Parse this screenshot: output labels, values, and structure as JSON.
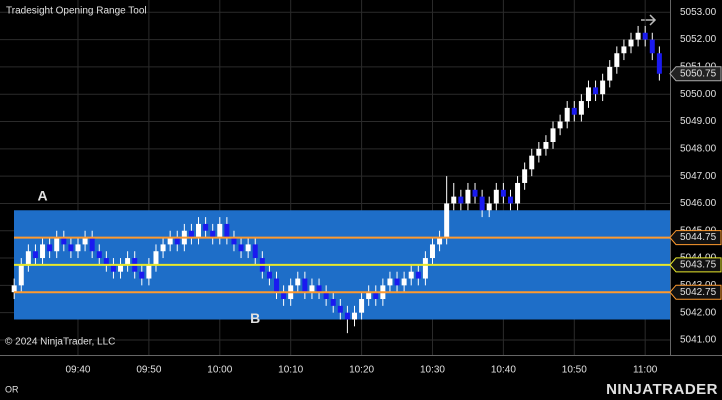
{
  "chart_data": {
    "type": "candlestick",
    "title": "Tradesight Opening Range Tool",
    "copyright": "© 2024 NinjaTrader, LLC",
    "footer_left": "OR",
    "brand": "NINJATRADER",
    "annotations": [
      {
        "text": "A",
        "x": 575,
        "y": 5046.25
      },
      {
        "text": "B",
        "x": 605,
        "y": 5041.75
      }
    ],
    "x": [
      571,
      572,
      573,
      574,
      575,
      576,
      577,
      578,
      579,
      580,
      581,
      582,
      583,
      584,
      585,
      586,
      587,
      588,
      589,
      590,
      591,
      592,
      593,
      594,
      595,
      596,
      597,
      598,
      599,
      600,
      601,
      602,
      603,
      604,
      605,
      606,
      607,
      608,
      609,
      610,
      611,
      612,
      613,
      614,
      615,
      616,
      617,
      618,
      619,
      620,
      621,
      622,
      623,
      624,
      625,
      626,
      627,
      628,
      629,
      630,
      631,
      632,
      633,
      634,
      635,
      636,
      637,
      638,
      639,
      640,
      641,
      642,
      643,
      644,
      645,
      646,
      647,
      648,
      649,
      650,
      651,
      652,
      653,
      654,
      655,
      656,
      657,
      658,
      659,
      660,
      661,
      662
    ],
    "open": [
      5042.75,
      5043,
      5043.75,
      5044.25,
      5044,
      5044.5,
      5044.25,
      5044.75,
      5044.5,
      5044.25,
      5044.5,
      5044.75,
      5044.25,
      5044,
      5043.75,
      5043.5,
      5043.75,
      5044,
      5043.5,
      5043.25,
      5043.75,
      5044.25,
      5044.5,
      5044.75,
      5044.5,
      5045,
      5044.75,
      5045.25,
      5045,
      5044.75,
      5045.25,
      5044.75,
      5044.5,
      5044.25,
      5044.5,
      5044,
      5043.5,
      5043.25,
      5042.75,
      5042.5,
      5043,
      5043.25,
      5042.75,
      5043,
      5042.75,
      5042.5,
      5042.25,
      5042,
      5041.75,
      5042,
      5042.5,
      5042.75,
      5042.5,
      5043,
      5043.25,
      5043,
      5043.25,
      5043.5,
      5043.25,
      5044,
      5044.5,
      5044.75,
      5046,
      5046.25,
      5046,
      5046.5,
      5046.25,
      5045.75,
      5046,
      5046.5,
      5046.25,
      5046,
      5046.75,
      5047.25,
      5047.75,
      5048,
      5048.25,
      5048.75,
      5049,
      5049.5,
      5049.25,
      5049.75,
      5050.25,
      5050,
      5050.5,
      5051,
      5051.5,
      5051.75,
      5052,
      5052.25,
      5052,
      5051.5
    ],
    "high": [
      5043.25,
      5044,
      5044.5,
      5044.5,
      5044.75,
      5044.75,
      5045,
      5045,
      5044.75,
      5044.75,
      5045,
      5045,
      5044.5,
      5044.25,
      5044,
      5044,
      5044.25,
      5044.25,
      5043.75,
      5044,
      5044.5,
      5044.75,
      5045,
      5045,
      5045.25,
      5045.25,
      5045.5,
      5045.5,
      5045.25,
      5045.5,
      5045.5,
      5045,
      5044.75,
      5044.75,
      5044.75,
      5044.25,
      5043.75,
      5043.5,
      5043,
      5043.25,
      5043.5,
      5043.5,
      5043.25,
      5043.25,
      5043,
      5042.75,
      5042.5,
      5042.25,
      5042.25,
      5042.75,
      5043,
      5043,
      5043.25,
      5043.5,
      5043.5,
      5043.5,
      5043.75,
      5043.75,
      5044.25,
      5044.75,
      5045,
      5047,
      5046.75,
      5046.5,
      5046.75,
      5046.75,
      5046.5,
      5046.25,
      5046.75,
      5046.75,
      5046.5,
      5047,
      5047.5,
      5048,
      5048.25,
      5048.5,
      5049,
      5049.25,
      5049.75,
      5049.75,
      5050,
      5050.5,
      5050.5,
      5050.75,
      5051.25,
      5051.75,
      5052,
      5052.25,
      5052.5,
      5052.5,
      5052.25,
      5051.75
    ],
    "low": [
      5042.5,
      5042.75,
      5043.5,
      5043.75,
      5043.75,
      5044,
      5044,
      5044.25,
      5044,
      5044,
      5044.25,
      5044,
      5043.75,
      5043.5,
      5043.25,
      5043.25,
      5043.5,
      5043.25,
      5043,
      5043,
      5043.5,
      5044,
      5044.25,
      5044.25,
      5044.25,
      5044.5,
      5044.5,
      5044.75,
      5044.5,
      5044.5,
      5044.5,
      5044.25,
      5044,
      5044,
      5043.75,
      5043.25,
      5043,
      5042.5,
      5042.25,
      5042.25,
      5042.75,
      5042.5,
      5042.5,
      5042.5,
      5042.25,
      5042,
      5041.75,
      5041.25,
      5041.5,
      5041.75,
      5042.25,
      5042.25,
      5042.25,
      5042.75,
      5042.75,
      5042.75,
      5043,
      5043,
      5043,
      5043.75,
      5044.25,
      5044.5,
      5045.75,
      5045.75,
      5045.75,
      5046,
      5045.5,
      5045.5,
      5045.75,
      5046,
      5045.75,
      5045.75,
      5046.5,
      5047,
      5047.5,
      5047.75,
      5048,
      5048.5,
      5048.75,
      5049,
      5049,
      5049.5,
      5049.75,
      5049.75,
      5050.25,
      5050.75,
      5051.25,
      5051.5,
      5051.75,
      5051.75,
      5051.25,
      5050.5
    ],
    "close": [
      5043,
      5043.75,
      5044.25,
      5044,
      5044.5,
      5044.25,
      5044.75,
      5044.5,
      5044.25,
      5044.5,
      5044.75,
      5044.25,
      5044,
      5043.75,
      5043.5,
      5043.75,
      5044,
      5043.5,
      5043.25,
      5043.75,
      5044.25,
      5044.5,
      5044.75,
      5044.5,
      5045,
      5044.75,
      5045.25,
      5045,
      5044.75,
      5045.25,
      5044.75,
      5044.5,
      5044.25,
      5044.5,
      5044,
      5043.5,
      5043.25,
      5042.75,
      5042.5,
      5043,
      5043.25,
      5042.75,
      5043,
      5042.75,
      5042.5,
      5042.25,
      5042,
      5041.75,
      5042,
      5042.5,
      5042.75,
      5042.5,
      5043,
      5043.25,
      5043,
      5043.25,
      5043.5,
      5043.25,
      5044,
      5044.5,
      5044.75,
      5046,
      5046.25,
      5046,
      5046.5,
      5046.25,
      5045.75,
      5046,
      5046.5,
      5046.25,
      5046,
      5046.75,
      5047.25,
      5047.75,
      5048,
      5048.25,
      5048.75,
      5049,
      5049.5,
      5049.25,
      5049.75,
      5050.25,
      5050,
      5050.5,
      5051,
      5051.5,
      5051.75,
      5052,
      5052.25,
      5052,
      5051.5,
      5050.75
    ],
    "up_color": "#ffffff",
    "down_color": "#1a1af0",
    "wick_color": "#ffffff",
    "range_box": {
      "top": 5045.75,
      "bottom": 5041.75,
      "color": "#1e6ec8"
    },
    "levels": [
      {
        "value": 5044.75,
        "label": "5044.75",
        "color": "#ff9a2e"
      },
      {
        "value": 5043.75,
        "label": "5043.75",
        "color": "#e8e82a"
      },
      {
        "value": 5042.75,
        "label": "5042.75",
        "color": "#ff9a2e"
      }
    ],
    "last_price": {
      "value": 5050.75,
      "label": "5050.75"
    },
    "xlim": [
      569,
      663.5
    ],
    "ylim": [
      5040.45,
      5053.45
    ],
    "xticks": [
      {
        "value": 580,
        "label": "09:40"
      },
      {
        "value": 590,
        "label": "09:50"
      },
      {
        "value": 600,
        "label": "10:00"
      },
      {
        "value": 610,
        "label": "10:10"
      },
      {
        "value": 620,
        "label": "10:20"
      },
      {
        "value": 630,
        "label": "10:30"
      },
      {
        "value": 640,
        "label": "10:40"
      },
      {
        "value": 650,
        "label": "10:50"
      },
      {
        "value": 660,
        "label": "11:00"
      }
    ],
    "yticks": [
      {
        "value": 5041,
        "label": "5041.00"
      },
      {
        "value": 5042,
        "label": "5042.00"
      },
      {
        "value": 5043,
        "label": "5043.00"
      },
      {
        "value": 5044,
        "label": "5044.00"
      },
      {
        "value": 5045,
        "label": "5045.00"
      },
      {
        "value": 5046,
        "label": "5046.00"
      },
      {
        "value": 5047,
        "label": "5047.00"
      },
      {
        "value": 5048,
        "label": "5048.00"
      },
      {
        "value": 5049,
        "label": "5049.00"
      },
      {
        "value": 5050,
        "label": "5050.00"
      },
      {
        "value": 5051,
        "label": "5051.00"
      },
      {
        "value": 5052,
        "label": "5052.00"
      },
      {
        "value": 5053,
        "label": "5053.00"
      }
    ],
    "grid": true
  }
}
